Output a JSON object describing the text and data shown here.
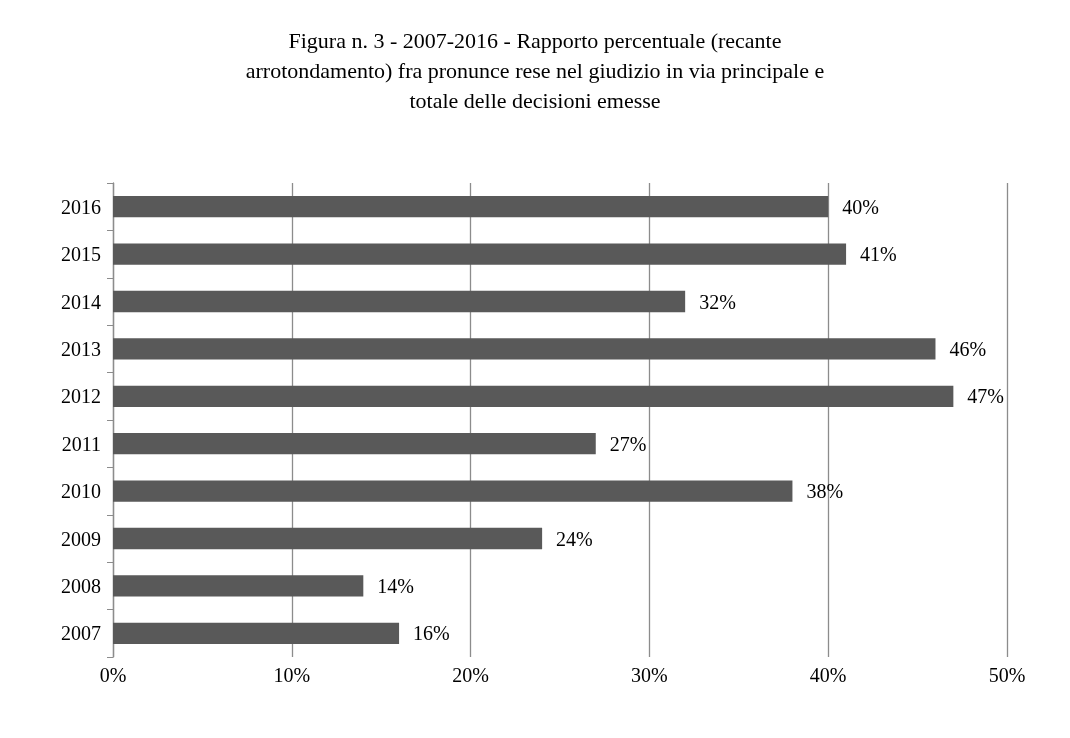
{
  "chart_data": {
    "type": "bar",
    "orientation": "horizontal",
    "title": "Figura n. 3 - 2007-2016 - Rapporto percentuale (recante\narrotondamento) fra pronunce rese nel giudizio in via principale e\ntotale delle decisioni emesse",
    "categories": [
      "2016",
      "2015",
      "2014",
      "2013",
      "2012",
      "2011",
      "2010",
      "2009",
      "2008",
      "2007"
    ],
    "values": [
      40,
      41,
      32,
      46,
      47,
      27,
      38,
      24,
      14,
      16
    ],
    "value_labels": [
      "40%",
      "41%",
      "32%",
      "46%",
      "47%",
      "27%",
      "38%",
      "24%",
      "14%",
      "16%"
    ],
    "color": "#595959",
    "xlim": [
      0,
      50
    ],
    "xticks": [
      {
        "value": 0,
        "label": "0%"
      },
      {
        "value": 10,
        "label": "10%"
      },
      {
        "value": 20,
        "label": "20%"
      },
      {
        "value": 30,
        "label": "30%"
      },
      {
        "value": 40,
        "label": "40%"
      },
      {
        "value": 50,
        "label": "50%"
      }
    ],
    "grid": "x"
  }
}
